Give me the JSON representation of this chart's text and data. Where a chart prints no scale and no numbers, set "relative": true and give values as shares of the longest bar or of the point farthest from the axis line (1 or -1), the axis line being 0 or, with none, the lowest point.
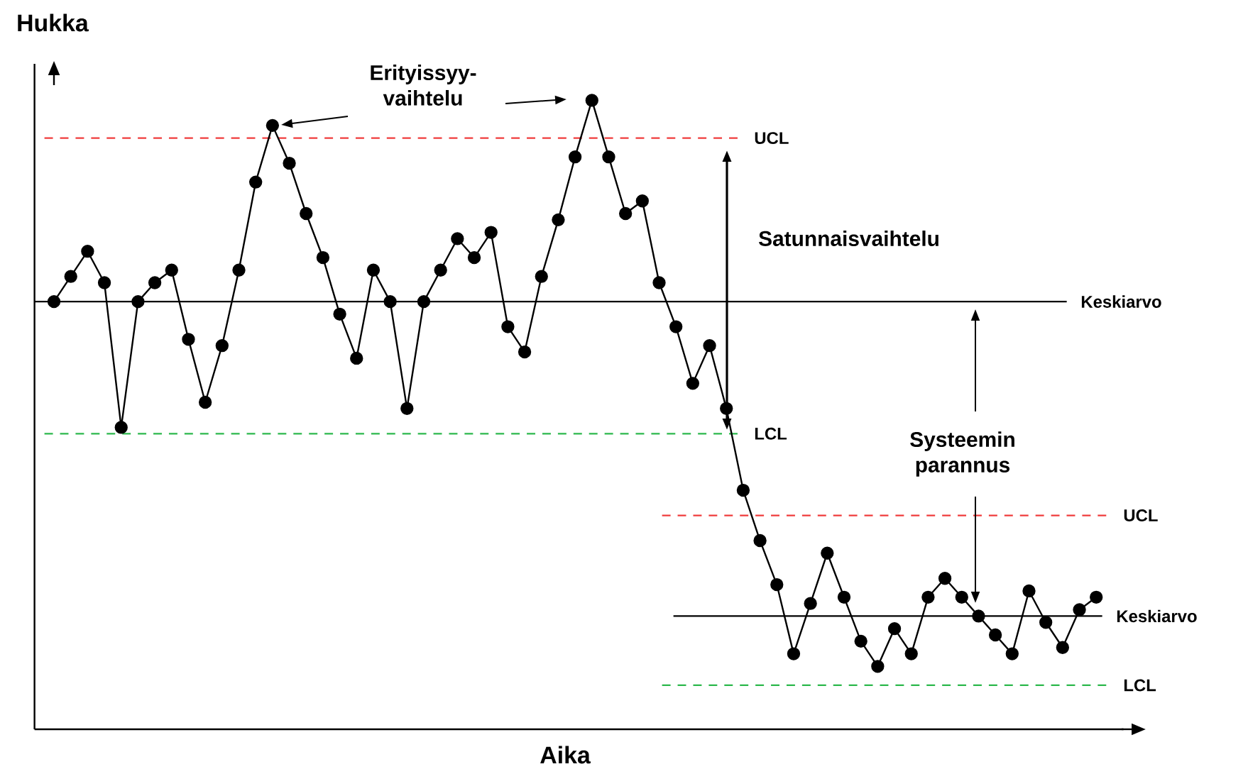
{
  "chart_data": {
    "type": "line",
    "relative": true,
    "xlabel": "Aika",
    "ylabel": "Hukka",
    "marker": "circle",
    "line_style": "solid",
    "categories": [
      null,
      null,
      null,
      null,
      null,
      null,
      null,
      null,
      null,
      null,
      null,
      null,
      null,
      null,
      null,
      null,
      null,
      null,
      null,
      null,
      null,
      null,
      null,
      null,
      null,
      null,
      null,
      null,
      null,
      null,
      null,
      null,
      null,
      null,
      null,
      null,
      null,
      null,
      null,
      null,
      null,
      null,
      null,
      null,
      null,
      null,
      null,
      null,
      null,
      null,
      null,
      null,
      null,
      null,
      null,
      null,
      null,
      null,
      null,
      null,
      null,
      null,
      null
    ],
    "series": [
      {
        "color": "#000000",
        "values": [
          0.68,
          0.72,
          0.76,
          0.71,
          0.48,
          0.68,
          0.71,
          0.73,
          0.62,
          0.52,
          0.61,
          0.73,
          0.87,
          0.96,
          0.9,
          0.82,
          0.75,
          0.66,
          0.59,
          0.73,
          0.68,
          0.51,
          0.68,
          0.73,
          0.78,
          0.75,
          0.79,
          0.64,
          0.6,
          0.72,
          0.81,
          0.91,
          1,
          0.91,
          0.82,
          0.84,
          0.71,
          0.64,
          0.55,
          0.61,
          0.51,
          0.38,
          0.3,
          0.23,
          0.12,
          0.2,
          0.28,
          0.21,
          0.14,
          0.1,
          0.16,
          0.12,
          0.21,
          0.24,
          0.21,
          0.18,
          0.15,
          0.12,
          0.22,
          0.17,
          0.13,
          0.19,
          0.21
        ]
      }
    ],
    "ref_lines": [
      {
        "axis": "y",
        "value": 0.94,
        "label": "UCL",
        "color": "#f03c3c",
        "line_style": "dashed"
      },
      {
        "axis": "y",
        "value": 0.68,
        "label": "Keskiarvo",
        "color": "#000000",
        "line_style": "solid"
      },
      {
        "axis": "y",
        "value": 0.47,
        "label": "LCL",
        "color": "#2cb84c",
        "line_style": "dashed"
      },
      {
        "axis": "y",
        "value": 0.34,
        "label": "UCL",
        "color": "#f03c3c",
        "line_style": "dashed"
      },
      {
        "axis": "y",
        "value": 0.18,
        "label": "Keskiarvo",
        "color": "#000000",
        "line_style": "solid"
      },
      {
        "axis": "y",
        "value": 0.07,
        "label": "LCL",
        "color": "#2cb84c",
        "line_style": "dashed"
      }
    ],
    "annotations": [
      "Erityissyy-vaihtelu",
      "Satunnaisvaihtelu",
      "Systeemin parannus"
    ]
  }
}
